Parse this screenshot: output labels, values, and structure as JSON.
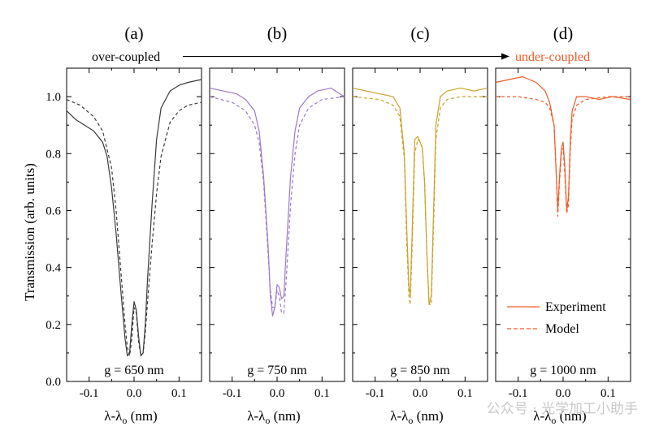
{
  "chart_data": {
    "type": "line",
    "ylabel": "Transmission (arb. units)",
    "xlabel": "λ-λ",
    "xlabel_subscript": "o",
    "xlabel_unit": " (nm)",
    "xlim": [
      -0.15,
      0.15
    ],
    "ylim": [
      0.0,
      1.1
    ],
    "xticks": [
      -0.1,
      0.0,
      0.1
    ],
    "xtick_labels": [
      "-0.1",
      "0.0",
      "0.1"
    ],
    "yticks": [
      0.0,
      0.2,
      0.4,
      0.6,
      0.8,
      1.0
    ],
    "ytick_labels": [
      "0.0",
      "0.2",
      "0.4",
      "0.6",
      "0.8",
      "1.0"
    ],
    "arrow": {
      "left_label": "over-coupled",
      "right_label": "under-coupled",
      "right_color": "#ef5a28"
    },
    "legend": {
      "position": "lower-right-of-panel-d",
      "entries": [
        "Experiment",
        "Model"
      ]
    },
    "panels": [
      {
        "label": "(a)",
        "gap": "g = 650 nm",
        "color": "#3a3a3a",
        "series": [
          {
            "name": "Experiment",
            "style": "solid",
            "x": [
              -0.15,
              -0.13,
              -0.11,
              -0.09,
              -0.07,
              -0.06,
              -0.05,
              -0.04,
              -0.03,
              -0.02,
              -0.015,
              -0.01,
              -0.005,
              0.0,
              0.005,
              0.01,
              0.015,
              0.02,
              0.025,
              0.03,
              0.04,
              0.05,
              0.06,
              0.08,
              0.1,
              0.12,
              0.15
            ],
            "y": [
              0.95,
              0.92,
              0.9,
              0.88,
              0.84,
              0.79,
              0.68,
              0.52,
              0.33,
              0.15,
              0.09,
              0.1,
              0.2,
              0.28,
              0.25,
              0.16,
              0.09,
              0.1,
              0.2,
              0.36,
              0.62,
              0.85,
              0.96,
              1.02,
              1.04,
              1.05,
              1.06
            ]
          },
          {
            "name": "Model",
            "style": "dashed",
            "x": [
              -0.15,
              -0.12,
              -0.09,
              -0.07,
              -0.05,
              -0.04,
              -0.03,
              -0.02,
              -0.015,
              -0.01,
              -0.005,
              0.0,
              0.005,
              0.01,
              0.015,
              0.02,
              0.025,
              0.03,
              0.04,
              0.05,
              0.06,
              0.08,
              0.1,
              0.12,
              0.15
            ],
            "y": [
              0.99,
              0.97,
              0.93,
              0.88,
              0.75,
              0.6,
              0.4,
              0.2,
              0.12,
              0.09,
              0.15,
              0.26,
              0.24,
              0.14,
              0.09,
              0.1,
              0.17,
              0.28,
              0.48,
              0.66,
              0.79,
              0.91,
              0.95,
              0.97,
              0.98
            ]
          }
        ]
      },
      {
        "label": "(b)",
        "gap": "g = 750 nm",
        "color": "#9b78c8",
        "series": [
          {
            "name": "Experiment",
            "style": "solid",
            "x": [
              -0.15,
              -0.12,
              -0.09,
              -0.07,
              -0.05,
              -0.04,
              -0.03,
              -0.02,
              -0.015,
              -0.01,
              -0.005,
              0.0,
              0.005,
              0.01,
              0.015,
              0.02,
              0.03,
              0.04,
              0.05,
              0.07,
              0.09,
              0.12,
              0.15
            ],
            "y": [
              1.03,
              1.02,
              1.01,
              0.99,
              0.95,
              0.88,
              0.72,
              0.48,
              0.3,
              0.23,
              0.26,
              0.34,
              0.33,
              0.29,
              0.3,
              0.45,
              0.72,
              0.88,
              0.96,
              1.0,
              1.02,
              1.03,
              1.0
            ]
          },
          {
            "name": "Model",
            "style": "dashed",
            "x": [
              -0.15,
              -0.1,
              -0.07,
              -0.05,
              -0.04,
              -0.03,
              -0.02,
              -0.015,
              -0.01,
              -0.005,
              0.0,
              0.005,
              0.01,
              0.015,
              0.02,
              0.03,
              0.04,
              0.05,
              0.07,
              0.1,
              0.15
            ],
            "y": [
              1.0,
              0.98,
              0.95,
              0.9,
              0.84,
              0.7,
              0.45,
              0.32,
              0.26,
              0.26,
              0.32,
              0.3,
              0.24,
              0.24,
              0.35,
              0.62,
              0.8,
              0.9,
              0.96,
              0.99,
              1.0
            ]
          }
        ]
      },
      {
        "label": "(c)",
        "gap": "g = 850 nm",
        "color": "#c9a227",
        "series": [
          {
            "name": "Experiment",
            "style": "solid",
            "x": [
              -0.15,
              -0.12,
              -0.09,
              -0.06,
              -0.045,
              -0.035,
              -0.03,
              -0.025,
              -0.022,
              -0.018,
              -0.012,
              -0.005,
              0.0,
              0.005,
              0.01,
              0.015,
              0.02,
              0.025,
              0.03,
              0.035,
              0.045,
              0.06,
              0.09,
              0.12,
              0.15
            ],
            "y": [
              1.03,
              1.02,
              1.01,
              1.0,
              0.96,
              0.8,
              0.55,
              0.33,
              0.3,
              0.5,
              0.85,
              0.86,
              0.84,
              0.82,
              0.7,
              0.45,
              0.27,
              0.3,
              0.6,
              0.9,
              1.0,
              1.02,
              1.03,
              1.02,
              1.03
            ]
          },
          {
            "name": "Model",
            "style": "dashed",
            "x": [
              -0.15,
              -0.09,
              -0.06,
              -0.045,
              -0.035,
              -0.03,
              -0.025,
              -0.022,
              -0.018,
              -0.012,
              -0.005,
              0.0,
              0.005,
              0.01,
              0.015,
              0.02,
              0.025,
              0.03,
              0.035,
              0.045,
              0.06,
              0.09,
              0.15
            ],
            "y": [
              1.0,
              0.99,
              0.97,
              0.93,
              0.78,
              0.5,
              0.3,
              0.27,
              0.45,
              0.8,
              0.85,
              0.84,
              0.82,
              0.7,
              0.45,
              0.27,
              0.27,
              0.55,
              0.85,
              0.96,
              0.99,
              1.0,
              1.0
            ]
          }
        ]
      },
      {
        "label": "(d)",
        "gap": "g = 1000 nm",
        "color": "#ef5a28",
        "series": [
          {
            "name": "Experiment",
            "style": "solid",
            "x": [
              -0.15,
              -0.12,
              -0.09,
              -0.06,
              -0.04,
              -0.03,
              -0.02,
              -0.015,
              -0.012,
              -0.008,
              -0.004,
              0.0,
              0.004,
              0.008,
              0.012,
              0.016,
              0.02,
              0.03,
              0.05,
              0.08,
              0.11,
              0.15
            ],
            "y": [
              1.05,
              1.06,
              1.07,
              1.05,
              1.02,
              0.98,
              0.9,
              0.72,
              0.6,
              0.72,
              0.82,
              0.84,
              0.75,
              0.6,
              0.65,
              0.85,
              0.95,
              1.0,
              1.0,
              0.99,
              1.0,
              0.99
            ]
          },
          {
            "name": "Model",
            "style": "dashed",
            "x": [
              -0.15,
              -0.1,
              -0.06,
              -0.04,
              -0.03,
              -0.02,
              -0.015,
              -0.012,
              -0.008,
              -0.004,
              0.0,
              0.004,
              0.008,
              0.012,
              0.016,
              0.02,
              0.03,
              0.05,
              0.1,
              0.15
            ],
            "y": [
              1.0,
              1.0,
              0.99,
              0.98,
              0.96,
              0.9,
              0.72,
              0.58,
              0.7,
              0.8,
              0.82,
              0.72,
              0.59,
              0.62,
              0.82,
              0.92,
              0.97,
              0.99,
              1.0,
              1.0
            ]
          }
        ]
      }
    ]
  },
  "watermark": "公众号 · 光学加工小助手"
}
